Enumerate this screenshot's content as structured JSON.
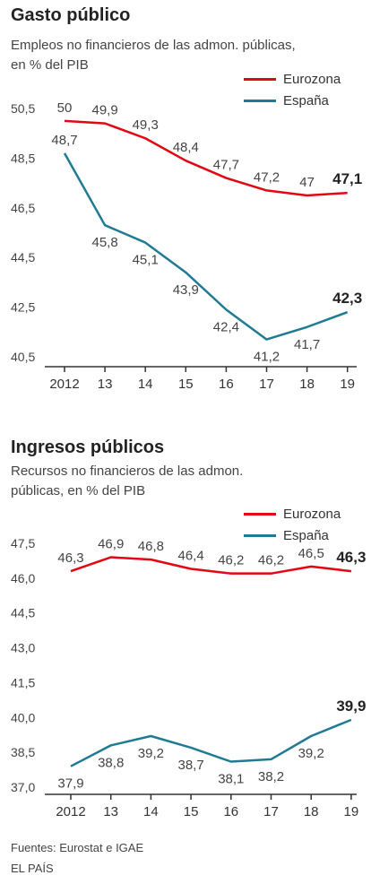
{
  "colors": {
    "eurozone": "#e30613",
    "spain": "#1f7a94",
    "axis": "#333333",
    "grid": "#cccccc",
    "text": "#444444"
  },
  "chart_data": [
    {
      "type": "line",
      "title": "Gasto público",
      "subtitle": "Empleos no financieros de las admon. públicas, en % del PIB",
      "x": [
        "2012",
        "13",
        "14",
        "15",
        "16",
        "17",
        "18",
        "19"
      ],
      "yticks": [
        "50,5",
        "48,5",
        "46,5",
        "44,5",
        "42,5",
        "40,5"
      ],
      "ylim": [
        40.5,
        50.5
      ],
      "grid": false,
      "legend_position": "top-right",
      "series": [
        {
          "name": "Eurozona",
          "values": [
            50,
            49.9,
            49.3,
            48.4,
            47.7,
            47.2,
            47,
            47.1
          ],
          "labels": [
            "50",
            "49,9",
            "49,3",
            "48,4",
            "47,7",
            "47,2",
            "47",
            "47,1"
          ]
        },
        {
          "name": "España",
          "values": [
            48.7,
            45.8,
            45.1,
            43.9,
            42.4,
            41.2,
            41.7,
            42.3
          ],
          "labels": [
            "48,7",
            "45,8",
            "45,1",
            "43,9",
            "42,4",
            "41,2",
            "41,7",
            "42,3"
          ]
        }
      ]
    },
    {
      "type": "line",
      "title": "Ingresos públicos",
      "subtitle": "Recursos no financieros de las admon. públicas, en % del PIB",
      "x": [
        "2012",
        "13",
        "14",
        "15",
        "16",
        "17",
        "18",
        "19"
      ],
      "yticks": [
        "47,5",
        "46,0",
        "44,5",
        "43,0",
        "41,5",
        "40,0",
        "38,5",
        "37,0"
      ],
      "ylim": [
        37.0,
        47.5
      ],
      "grid": false,
      "legend_position": "top-right",
      "series": [
        {
          "name": "Eurozona",
          "values": [
            46.3,
            46.9,
            46.8,
            46.4,
            46.2,
            46.2,
            46.5,
            46.3
          ],
          "labels": [
            "46,3",
            "46,9",
            "46,8",
            "46,4",
            "46,2",
            "46,2",
            "46,5",
            "46,3"
          ]
        },
        {
          "name": "España",
          "values": [
            37.9,
            38.8,
            39.2,
            38.7,
            38.1,
            38.2,
            39.2,
            39.9
          ],
          "labels": [
            "37,9",
            "38,8",
            "39,2",
            "38,7",
            "38,1",
            "38,2",
            "39,2",
            "39,9"
          ]
        }
      ]
    }
  ],
  "footer": {
    "sources": "Fuentes: Eurostat e IGAE",
    "brand": "EL PAÍS"
  }
}
